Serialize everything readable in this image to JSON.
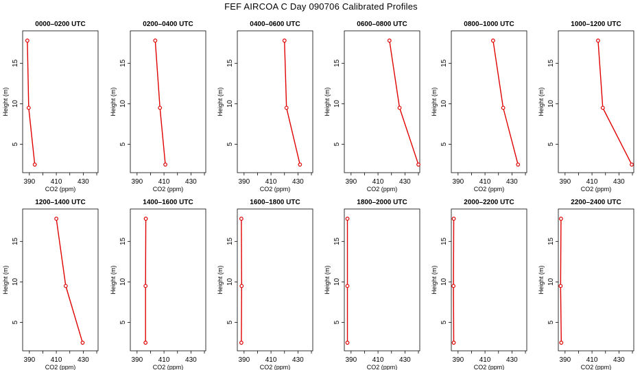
{
  "figure": {
    "title": "FEF AIRCOA C  Day 090706  Calibrated Profiles"
  },
  "style": {
    "line_color": "#e00000",
    "marker_color": "#e00000",
    "axis_color": "#000000"
  },
  "chart_data": [
    {
      "type": "line",
      "title": "0000–0200 UTC",
      "xlabel": "CO2 (ppm)",
      "ylabel": "Height (m)",
      "xlim": [
        385,
        441
      ],
      "ylim": [
        1.5,
        19
      ],
      "xticks": [
        390,
        410,
        430
      ],
      "yticks": [
        5,
        10,
        15
      ],
      "x": [
        388.5,
        389.5,
        394.0
      ],
      "y": [
        17.8,
        9.5,
        2.5
      ]
    },
    {
      "type": "line",
      "title": "0200–0400 UTC",
      "xlabel": "CO2 (ppm)",
      "ylabel": "Height (m)",
      "xlim": [
        385,
        441
      ],
      "ylim": [
        1.5,
        19
      ],
      "xticks": [
        390,
        410,
        430
      ],
      "yticks": [
        5,
        10,
        15
      ],
      "x": [
        403.5,
        407.0,
        411.0
      ],
      "y": [
        17.8,
        9.5,
        2.5
      ]
    },
    {
      "type": "line",
      "title": "0400–0600 UTC",
      "xlabel": "CO2 (ppm)",
      "ylabel": "Height (m)",
      "xlim": [
        385,
        441
      ],
      "ylim": [
        1.5,
        19
      ],
      "xticks": [
        390,
        410,
        430
      ],
      "yticks": [
        5,
        10,
        15
      ],
      "x": [
        420.0,
        421.5,
        431.5
      ],
      "y": [
        17.8,
        9.5,
        2.5
      ]
    },
    {
      "type": "line",
      "title": "0600–0800 UTC",
      "xlabel": "CO2 (ppm)",
      "ylabel": "Height (m)",
      "xlim": [
        385,
        441
      ],
      "ylim": [
        1.5,
        19
      ],
      "xticks": [
        390,
        410,
        430
      ],
      "yticks": [
        5,
        10,
        15
      ],
      "x": [
        418.5,
        426.0,
        440.0
      ],
      "y": [
        17.8,
        9.5,
        2.5
      ]
    },
    {
      "type": "line",
      "title": "0800–1000 UTC",
      "xlabel": "CO2 (ppm)",
      "ylabel": "Height (m)",
      "xlim": [
        385,
        441
      ],
      "ylim": [
        1.5,
        19
      ],
      "xticks": [
        390,
        410,
        430
      ],
      "yticks": [
        5,
        10,
        15
      ],
      "x": [
        416.0,
        423.5,
        434.5
      ],
      "y": [
        17.8,
        9.5,
        2.5
      ]
    },
    {
      "type": "line",
      "title": "1000–1200 UTC",
      "xlabel": "CO2 (ppm)",
      "ylabel": "Height (m)",
      "xlim": [
        385,
        441
      ],
      "ylim": [
        1.5,
        19
      ],
      "xticks": [
        390,
        410,
        430
      ],
      "yticks": [
        5,
        10,
        15
      ],
      "x": [
        414.5,
        418.0,
        439.5
      ],
      "y": [
        17.8,
        9.5,
        2.5
      ]
    },
    {
      "type": "line",
      "title": "1200–1400 UTC",
      "xlabel": "CO2 (ppm)",
      "ylabel": "Height (m)",
      "xlim": [
        385,
        441
      ],
      "ylim": [
        1.5,
        19
      ],
      "xticks": [
        390,
        410,
        430
      ],
      "yticks": [
        5,
        10,
        15
      ],
      "x": [
        410.0,
        417.0,
        429.5
      ],
      "y": [
        17.8,
        9.5,
        2.5
      ]
    },
    {
      "type": "line",
      "title": "1400–1600 UTC",
      "xlabel": "CO2 (ppm)",
      "ylabel": "Height (m)",
      "xlim": [
        385,
        441
      ],
      "ylim": [
        1.5,
        19
      ],
      "xticks": [
        390,
        410,
        430
      ],
      "yticks": [
        5,
        10,
        15
      ],
      "x": [
        396.5,
        396.3,
        396.3
      ],
      "y": [
        17.8,
        9.5,
        2.5
      ]
    },
    {
      "type": "line",
      "title": "1600–1800 UTC",
      "xlabel": "CO2 (ppm)",
      "ylabel": "Height (m)",
      "xlim": [
        385,
        441
      ],
      "ylim": [
        1.5,
        19
      ],
      "xticks": [
        390,
        410,
        430
      ],
      "yticks": [
        5,
        10,
        15
      ],
      "x": [
        388.0,
        388.2,
        388.0
      ],
      "y": [
        17.8,
        9.5,
        2.5
      ]
    },
    {
      "type": "line",
      "title": "1800–2000 UTC",
      "xlabel": "CO2 (ppm)",
      "ylabel": "Height (m)",
      "xlim": [
        385,
        441
      ],
      "ylim": [
        1.5,
        19
      ],
      "xticks": [
        390,
        410,
        430
      ],
      "yticks": [
        5,
        10,
        15
      ],
      "x": [
        387.3,
        387.3,
        387.3
      ],
      "y": [
        17.8,
        9.5,
        2.5
      ]
    },
    {
      "type": "line",
      "title": "2000–2200 UTC",
      "xlabel": "CO2 (ppm)",
      "ylabel": "Height (m)",
      "xlim": [
        385,
        441
      ],
      "ylim": [
        1.5,
        19
      ],
      "xticks": [
        390,
        410,
        430
      ],
      "yticks": [
        5,
        10,
        15
      ],
      "x": [
        386.8,
        386.6,
        386.8
      ],
      "y": [
        17.8,
        9.5,
        2.5
      ]
    },
    {
      "type": "line",
      "title": "2200–2400 UTC",
      "xlabel": "CO2 (ppm)",
      "ylabel": "Height (m)",
      "xlim": [
        385,
        441
      ],
      "ylim": [
        1.5,
        19
      ],
      "xticks": [
        390,
        410,
        430
      ],
      "yticks": [
        5,
        10,
        15
      ],
      "x": [
        387.0,
        386.7,
        387.2
      ],
      "y": [
        17.8,
        9.5,
        2.5
      ]
    }
  ]
}
